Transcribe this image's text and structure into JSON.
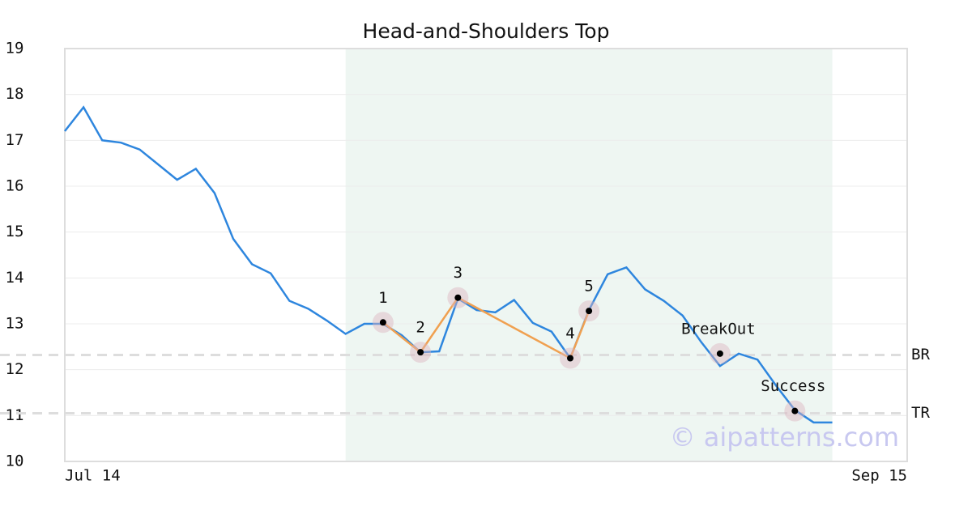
{
  "chart_data": {
    "type": "line",
    "title": "Head-and-Shoulders Top",
    "x": [
      0,
      1,
      2,
      3,
      4,
      5,
      6,
      7,
      8,
      9,
      10,
      11,
      12,
      13,
      14,
      15,
      16,
      17,
      18,
      19,
      20,
      21,
      22,
      23,
      24,
      25,
      26,
      27,
      28,
      29,
      30,
      31,
      32,
      33,
      34,
      35,
      36,
      37,
      38,
      39,
      40,
      41
    ],
    "values": [
      17.2,
      17.72,
      17.0,
      16.95,
      16.8,
      16.47,
      16.14,
      16.38,
      15.85,
      14.85,
      14.3,
      14.1,
      13.5,
      13.33,
      13.07,
      12.78,
      13.0,
      13.0,
      12.75,
      12.38,
      12.4,
      13.55,
      13.3,
      13.25,
      13.52,
      13.02,
      12.83,
      12.25,
      13.3,
      14.08,
      14.23,
      13.75,
      13.5,
      13.18,
      12.6,
      12.08,
      12.35,
      12.22,
      11.65,
      11.12,
      10.85,
      10.85
    ],
    "color": "#2e86de",
    "xlim": [
      0,
      45
    ],
    "xticks": [
      {
        "value": 0,
        "label": "Jul 14"
      },
      {
        "value": 45,
        "label": "Sep 15"
      }
    ],
    "ylim": [
      10,
      19
    ],
    "yticks": [
      10,
      11,
      12,
      13,
      14,
      15,
      16,
      17,
      18,
      19
    ],
    "grid": true,
    "highlight_xlim": [
      15,
      41
    ],
    "pattern": {
      "x": [
        17,
        19,
        21,
        27,
        28
      ],
      "values": [
        13.03,
        12.38,
        13.57,
        12.25,
        13.28
      ],
      "labels": [
        "1",
        "2",
        "3",
        "4",
        "5"
      ],
      "color": "#f0a050"
    },
    "markers": [
      {
        "label": "BreakOut",
        "x": 35,
        "value": 12.35
      },
      {
        "label": "Success",
        "x": 39,
        "value": 11.1
      }
    ],
    "levels": [
      {
        "label": "BR",
        "value": 12.32
      },
      {
        "label": "TR",
        "value": 11.05
      }
    ],
    "watermark": "© aipatterns.com"
  }
}
